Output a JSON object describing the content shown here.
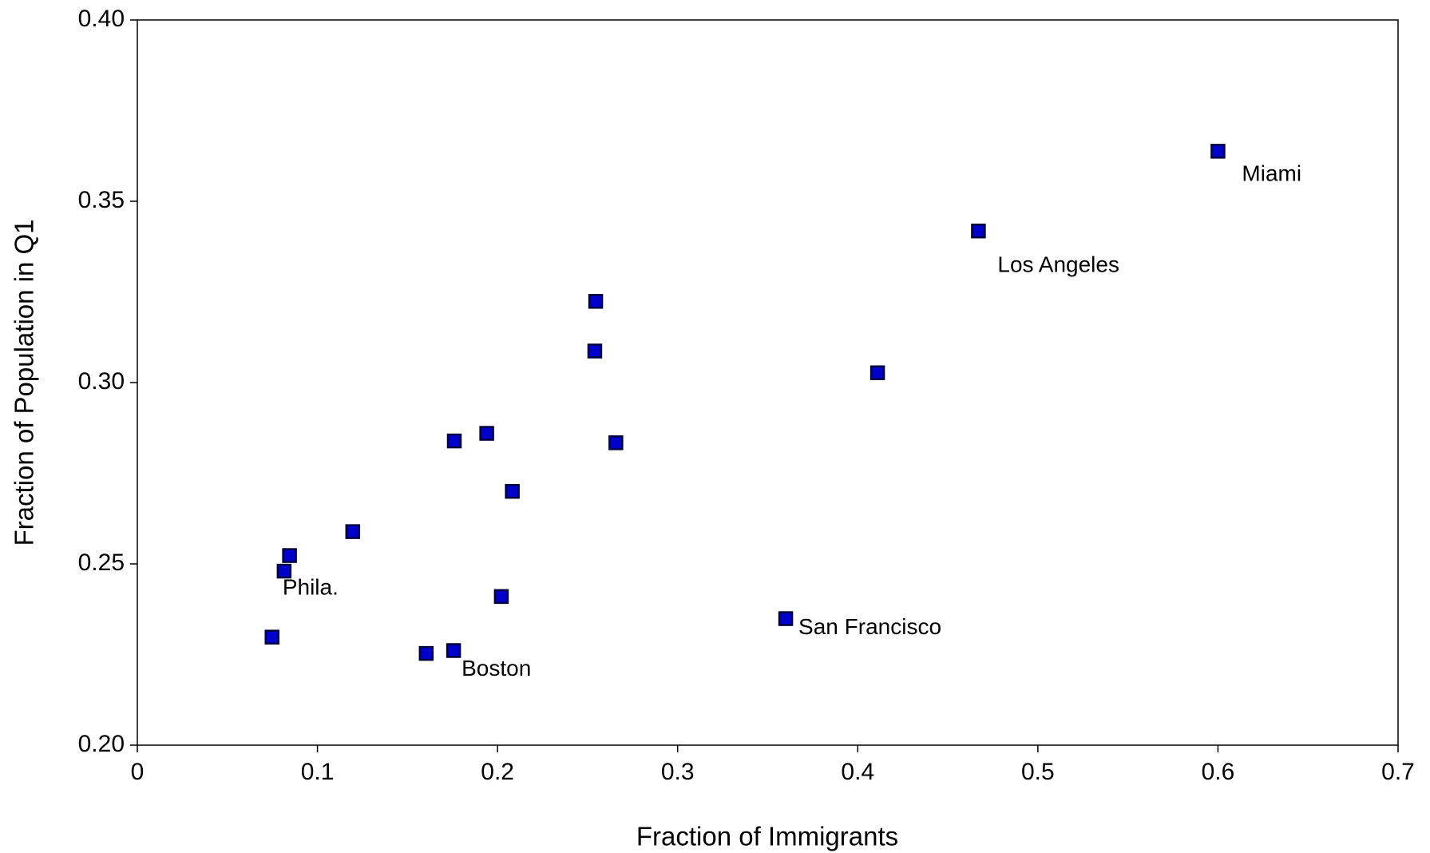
{
  "chart_data": {
    "type": "scatter",
    "x_label": "Fraction of Immigrants",
    "y_label": "Fraction of Population in Q1",
    "xlim": [
      0,
      0.7
    ],
    "ylim": [
      0.2,
      0.4
    ],
    "xticks": [
      0,
      0.1,
      0.2,
      0.3,
      0.4,
      0.5,
      0.6,
      0.7
    ],
    "yticks": [
      {
        "value": 0.2,
        "label": "0.20"
      },
      {
        "value": 0.25,
        "label": "0.25"
      },
      {
        "value": 0.3,
        "label": "0.30"
      },
      {
        "value": 0.35,
        "label": "0.35"
      },
      {
        "value": 0.4,
        "label": "0.40"
      }
    ],
    "grid": false,
    "series": [
      {
        "color": "#0000cc",
        "x": [
          0.6,
          0.467,
          0.411,
          0.2545,
          0.254,
          0.194,
          0.176,
          0.2657,
          0.2082,
          0.1196,
          0.0845,
          0.0815,
          0.2021,
          0.36,
          0.0748,
          0.1604,
          0.1756
        ],
        "values": [
          0.3638,
          0.3418,
          0.3027,
          0.3224,
          0.3087,
          0.286,
          0.2839,
          0.2834,
          0.27,
          0.2589,
          0.2523,
          0.248,
          0.241,
          0.2349,
          0.2298,
          0.2253,
          0.2261
        ],
        "labels": [
          "Miami",
          "Los Angeles",
          null,
          null,
          null,
          null,
          null,
          null,
          null,
          null,
          null,
          "Phila.",
          null,
          "San Francisco",
          null,
          null,
          "Boston"
        ]
      }
    ]
  }
}
